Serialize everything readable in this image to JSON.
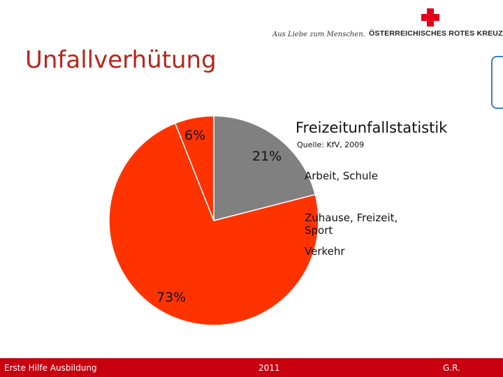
{
  "header": {
    "slogan": "Aus Liebe zum Menschen.",
    "organization": "ÖSTERREICHISCHES ROTES KREUZ"
  },
  "slide": {
    "title": "Unfallverhütung"
  },
  "chart_data": {
    "type": "pie",
    "title": "Freizeitunfallstatistik",
    "subtitle": "Quelle: KfV, 2009",
    "slices": [
      {
        "name": "Arbeit, Schule",
        "value": 21,
        "label": "21%",
        "color": "#808080"
      },
      {
        "name": "Zuhause, Freizeit, Sport",
        "value": 73,
        "label": "73%",
        "color": "#ff3300"
      },
      {
        "name": "Verkehr",
        "value": 6,
        "label": "6%",
        "color": "#ff3300"
      }
    ],
    "legend_position": "right"
  },
  "footer": {
    "left": "Erste Hilfe Ausbildung",
    "center": "2011",
    "right": "G.R."
  }
}
